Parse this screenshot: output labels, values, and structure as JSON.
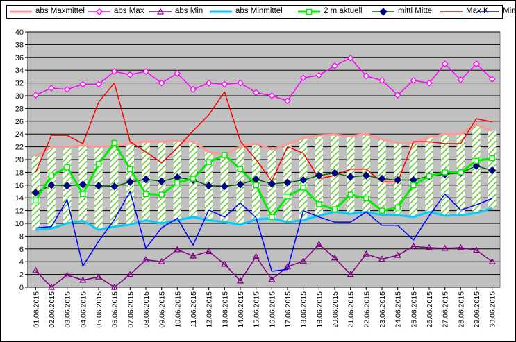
{
  "chart_data": {
    "type": "line",
    "title": "",
    "xlabel": "",
    "ylabel": "",
    "ylim": [
      0,
      40
    ],
    "ytick_step": 2,
    "grid": true,
    "legend_position": "top",
    "plot_background": "#c0c0c0",
    "band_fill": "#66cc33",
    "categories": [
      "01.06.2015",
      "02.06.2015",
      "03.06.2015",
      "04.06.2015",
      "05.06.2015",
      "06.06.2015",
      "07.06.2015",
      "08.06.2015",
      "09.06.2015",
      "10.06.2015",
      "11.06.2015",
      "12.06.2015",
      "13.06.2015",
      "14.06.2015",
      "15.06.2015",
      "16.06.2015",
      "17.06.2015",
      "18.06.2015",
      "19.06.2015",
      "20.06.2015",
      "21.06.2015",
      "22.06.2015",
      "23.06.2015",
      "24.06.2015",
      "25.06.2015",
      "26.06.2015",
      "27.06.2015",
      "28.06.2015",
      "29.06.2015",
      "30.06.2015"
    ],
    "series": [
      {
        "name": "abs Maxmittel",
        "color": "#ff9999",
        "marker": "none",
        "width": 3,
        "values": [
          20.5,
          22.0,
          22.0,
          22.2,
          22.0,
          22.1,
          22.5,
          22.8,
          22.8,
          23.0,
          22.8,
          21.2,
          20.8,
          22.0,
          22.5,
          21.6,
          22.4,
          23.4,
          23.8,
          23.9,
          23.7,
          24.0,
          23.2,
          22.6,
          22.6,
          23.5,
          24.0,
          24.0,
          25.5,
          24.5
        ]
      },
      {
        "name": "abs Max",
        "color": "#ff00ff",
        "marker": "diamond-open",
        "width": 1.5,
        "values": [
          30.1,
          31.2,
          31.0,
          31.8,
          31.8,
          33.8,
          33.3,
          33.8,
          32.0,
          33.5,
          31.0,
          32.0,
          31.8,
          32.0,
          30.5,
          30.0,
          29.2,
          32.8,
          33.2,
          34.7,
          35.9,
          33.1,
          32.4,
          30.1,
          32.4,
          32.0,
          35.0,
          32.5,
          35.0,
          32.6
        ]
      },
      {
        "name": "abs Min",
        "color": "#800080",
        "marker": "triangle-open",
        "width": 1.5,
        "values": [
          2.6,
          0.0,
          1.9,
          1.1,
          1.6,
          0.0,
          2.0,
          4.3,
          4.0,
          5.9,
          4.9,
          5.6,
          3.6,
          1.0,
          4.8,
          1.2,
          3.2,
          4.1,
          6.7,
          4.6,
          2.0,
          5.2,
          4.4,
          5.0,
          6.4,
          6.2,
          6.1,
          6.2,
          5.8,
          4.0
        ]
      },
      {
        "name": "abs Minmittel",
        "color": "#00ccff",
        "marker": "none",
        "width": 3,
        "values": [
          9.0,
          9.2,
          10.0,
          10.4,
          9.0,
          9.5,
          9.8,
          10.5,
          10.0,
          10.5,
          11.0,
          10.5,
          10.2,
          9.8,
          10.6,
          10.8,
          10.2,
          10.5,
          11.2,
          11.8,
          11.5,
          11.8,
          11.3,
          11.3,
          11.0,
          11.8,
          11.2,
          11.3,
          11.6,
          12.4
        ]
      },
      {
        "name": "2 m aktuell",
        "color": "#00ee00",
        "marker": "square-open",
        "width": 3,
        "values": [
          13.6,
          17.5,
          18.8,
          14.6,
          19.3,
          22.6,
          18.5,
          14.6,
          14.5,
          16.4,
          17.0,
          19.6,
          20.7,
          18.5,
          16.0,
          11.0,
          14.2,
          15.6,
          13.0,
          12.2,
          14.5,
          13.9,
          12.0,
          12.5,
          16.0,
          17.4,
          18.0,
          18.0,
          19.8,
          20.2
        ]
      },
      {
        "name": "mittl Mittel",
        "color": "#006600",
        "marker": "diamond-filled",
        "width": 1.5,
        "values": [
          14.8,
          16.0,
          15.9,
          16.1,
          15.9,
          15.8,
          16.5,
          16.9,
          16.6,
          17.2,
          16.8,
          15.9,
          15.8,
          16.1,
          16.9,
          16.2,
          16.4,
          16.8,
          17.5,
          17.9,
          17.3,
          17.5,
          17.0,
          16.8,
          16.8,
          17.4,
          17.7,
          17.9,
          19.0,
          18.3
        ]
      },
      {
        "name": "Max K",
        "color": "#ff0000",
        "marker": "none",
        "width": 1.5,
        "values": [
          18.0,
          23.8,
          23.8,
          22.5,
          29.0,
          32.0,
          22.8,
          21.2,
          19.5,
          21.8,
          24.5,
          27.0,
          30.6,
          22.9,
          20.0,
          16.6,
          22.0,
          21.0,
          17.0,
          17.5,
          18.5,
          18.5,
          16.5,
          16.5,
          22.8,
          22.8,
          22.5,
          22.5,
          26.4,
          25.9
        ]
      },
      {
        "name": "Min K",
        "color": "#0000ff",
        "marker": "none",
        "width": 1.5,
        "values": [
          9.3,
          9.5,
          13.7,
          3.3,
          7.2,
          10.6,
          15.0,
          6.1,
          9.3,
          10.8,
          6.6,
          12.1,
          11.0,
          13.2,
          10.9,
          2.5,
          2.8,
          12.0,
          11.0,
          10.2,
          10.2,
          11.8,
          9.7,
          9.7,
          7.4,
          11.2,
          14.6,
          12.1,
          12.9,
          13.9
        ]
      }
    ]
  }
}
